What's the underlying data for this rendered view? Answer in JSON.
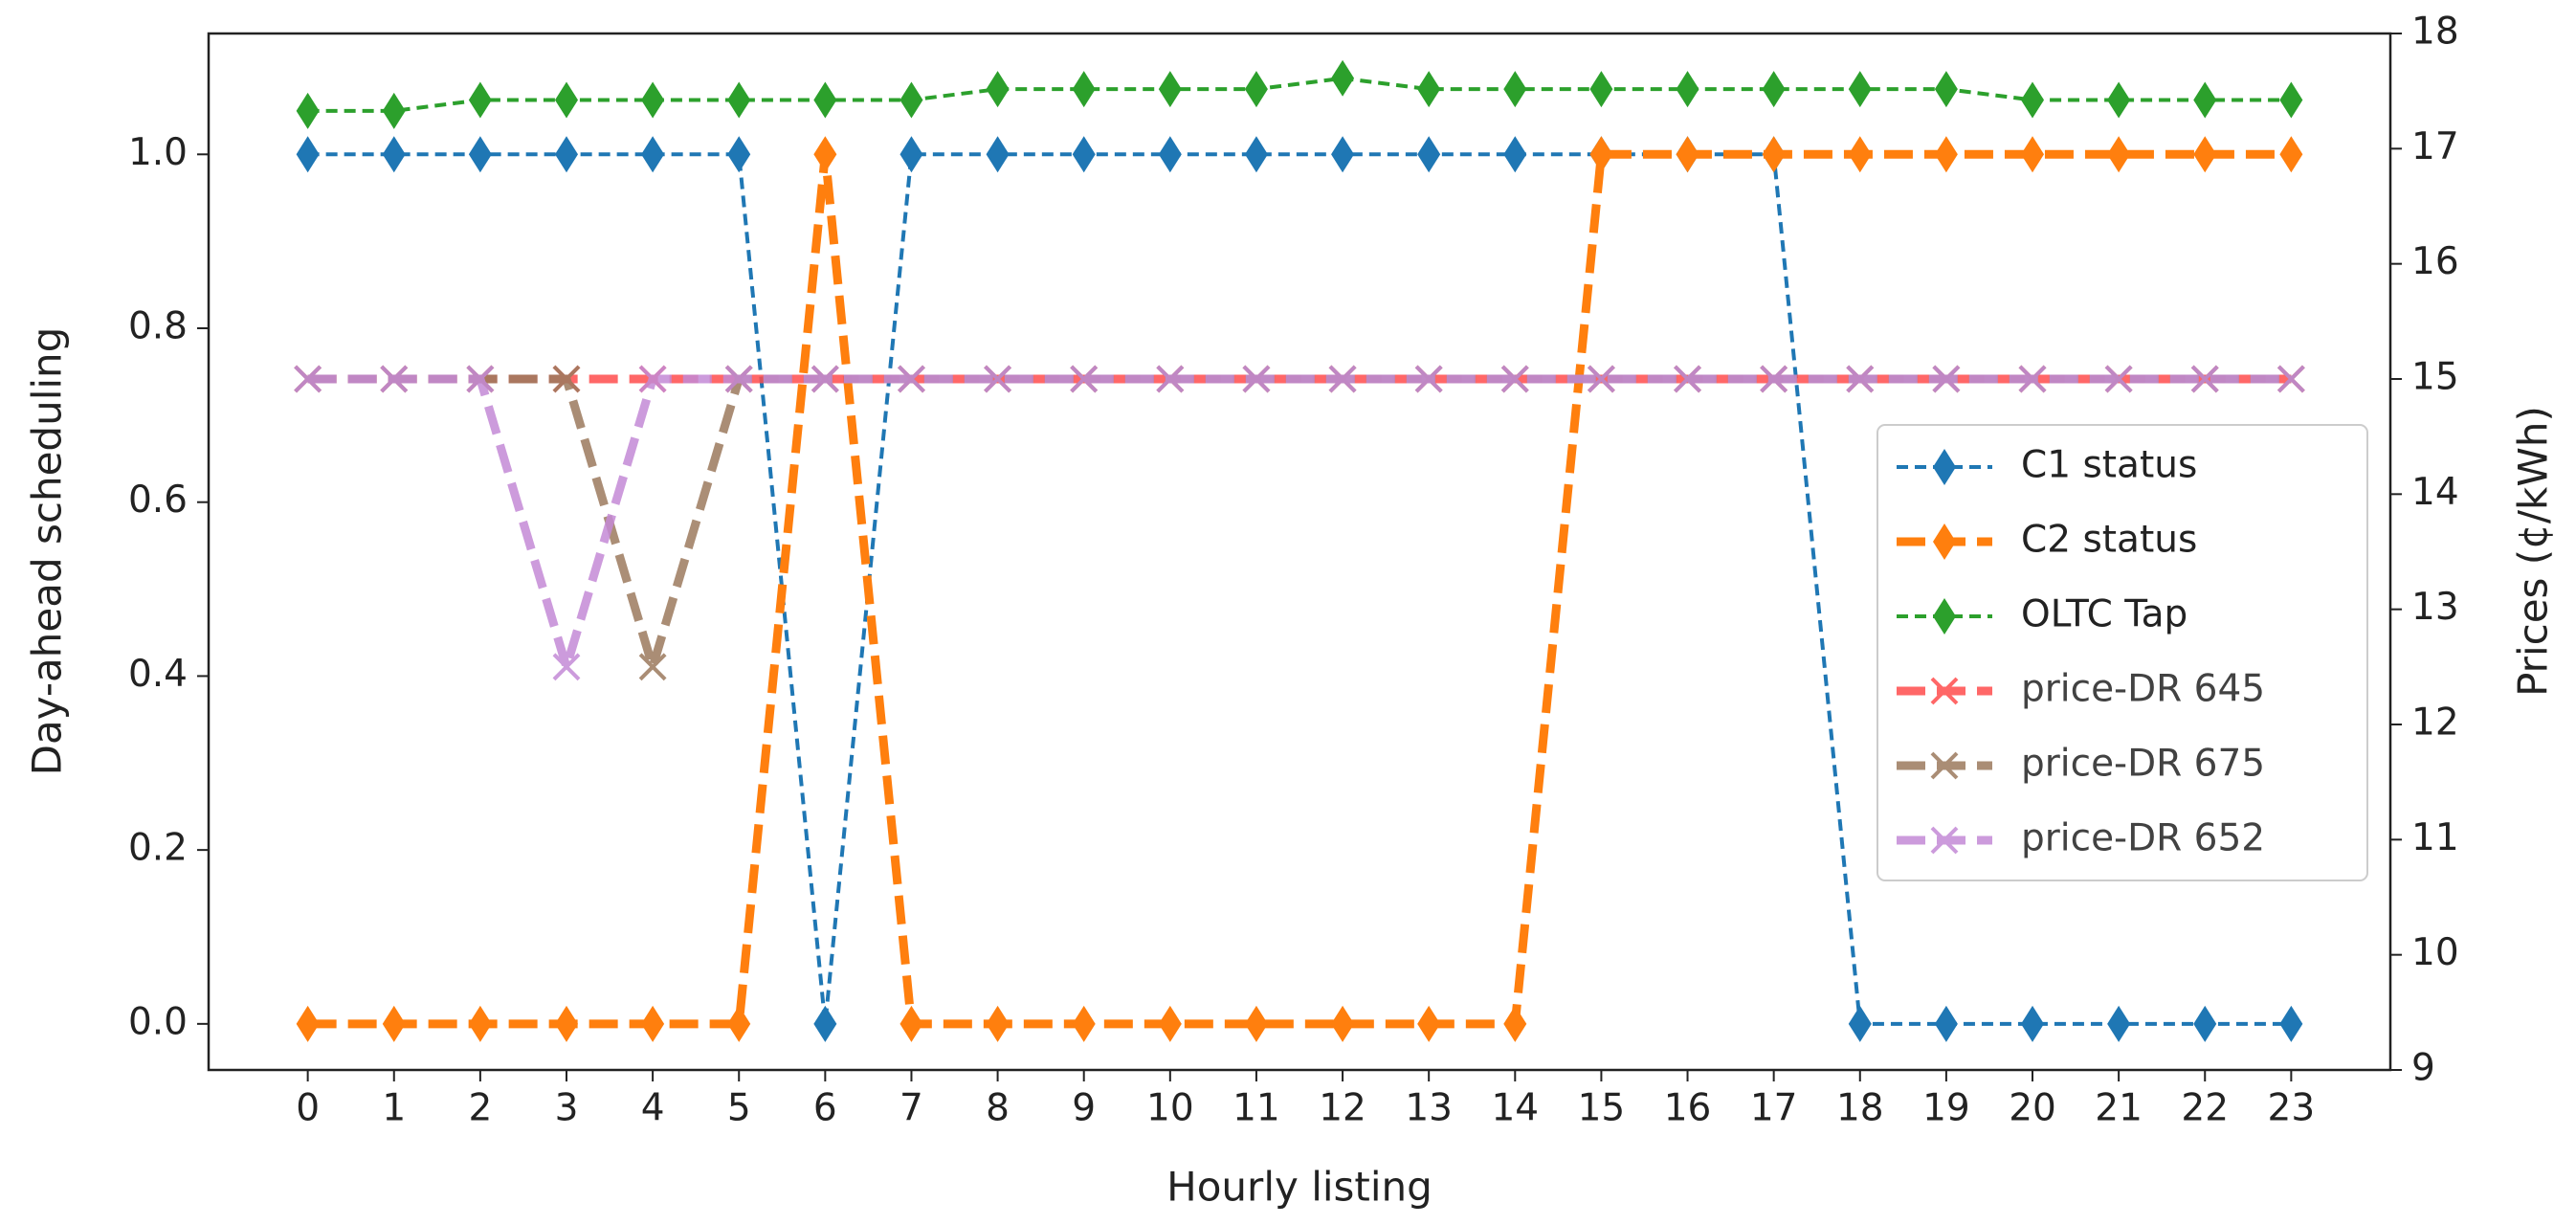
{
  "chart_data": {
    "type": "line",
    "xlabel": "Hourly listing",
    "ylabel": "Day-ahead scheduling",
    "y2label": "Prices (¢/kWh)",
    "x": [
      0,
      1,
      2,
      3,
      4,
      5,
      6,
      7,
      8,
      9,
      10,
      11,
      12,
      13,
      14,
      15,
      16,
      17,
      18,
      19,
      20,
      21,
      22,
      23
    ],
    "xlim": [
      -1.15,
      24.15
    ],
    "xticks": [
      0,
      1,
      2,
      3,
      4,
      5,
      6,
      7,
      8,
      9,
      10,
      11,
      12,
      13,
      14,
      15,
      16,
      17,
      18,
      19,
      20,
      21,
      22,
      23
    ],
    "ylim": [
      -0.053,
      1.139
    ],
    "yticks": [
      {
        "value": 0,
        "label": "0.0"
      },
      0.2,
      0.4,
      0.6,
      0.8,
      {
        "value": 1,
        "label": "1.0"
      }
    ],
    "y2lim": [
      9,
      18
    ],
    "y2ticks": [
      9,
      10,
      11,
      12,
      13,
      14,
      15,
      16,
      17,
      18
    ],
    "legend": "center right",
    "series": [
      {
        "name": "C1 status",
        "color": "#1f77b4",
        "marker": "diamond",
        "axis": "y",
        "values": [
          1,
          1,
          1,
          1,
          1,
          1,
          0,
          1,
          1,
          1,
          1,
          1,
          1,
          1,
          1,
          1,
          1,
          1,
          0,
          0,
          0,
          0,
          0,
          0
        ]
      },
      {
        "name": "C2 status",
        "color": "#ff7f0e",
        "marker": "diamond",
        "axis": "y",
        "values": [
          0,
          0,
          0,
          0,
          0,
          0,
          1,
          0,
          0,
          0,
          0,
          0,
          0,
          0,
          0,
          1,
          1,
          1,
          1,
          1,
          1,
          1,
          1,
          1
        ]
      },
      {
        "name": "OLTC Tap",
        "color": "#2ca02c",
        "marker": "diamond",
        "axis": "y",
        "values": [
          1.05,
          1.05,
          1.0625,
          1.0625,
          1.0625,
          1.0625,
          1.0625,
          1.0625,
          1.075,
          1.075,
          1.075,
          1.075,
          1.0875,
          1.075,
          1.075,
          1.075,
          1.075,
          1.075,
          1.075,
          1.075,
          1.0625,
          1.0625,
          1.0625,
          1.0625
        ]
      },
      {
        "name": "price-DR 645",
        "color": "#ff4d4d",
        "marker": "x",
        "axis": "y2",
        "values": [
          15,
          15,
          15,
          15,
          15,
          15,
          15,
          15,
          15,
          15,
          15,
          15,
          15,
          15,
          15,
          15,
          15,
          15,
          15,
          15,
          15,
          15,
          15,
          15
        ]
      },
      {
        "name": "price-DR 675",
        "color": "#9c7a5e",
        "marker": "x",
        "axis": "y2",
        "values": [
          15,
          15,
          15,
          15,
          12.5,
          15,
          15,
          15,
          15,
          15,
          15,
          15,
          15,
          15,
          15,
          15,
          15,
          15,
          15,
          15,
          15,
          15,
          15,
          15
        ]
      },
      {
        "name": "price-DR 652",
        "color": "#c48ad6",
        "marker": "x",
        "axis": "y2",
        "values": [
          15,
          15,
          15,
          12.5,
          15,
          15,
          15,
          15,
          15,
          15,
          15,
          15,
          15,
          15,
          15,
          15,
          15,
          15,
          15,
          15,
          15,
          15,
          15,
          15
        ]
      }
    ]
  }
}
